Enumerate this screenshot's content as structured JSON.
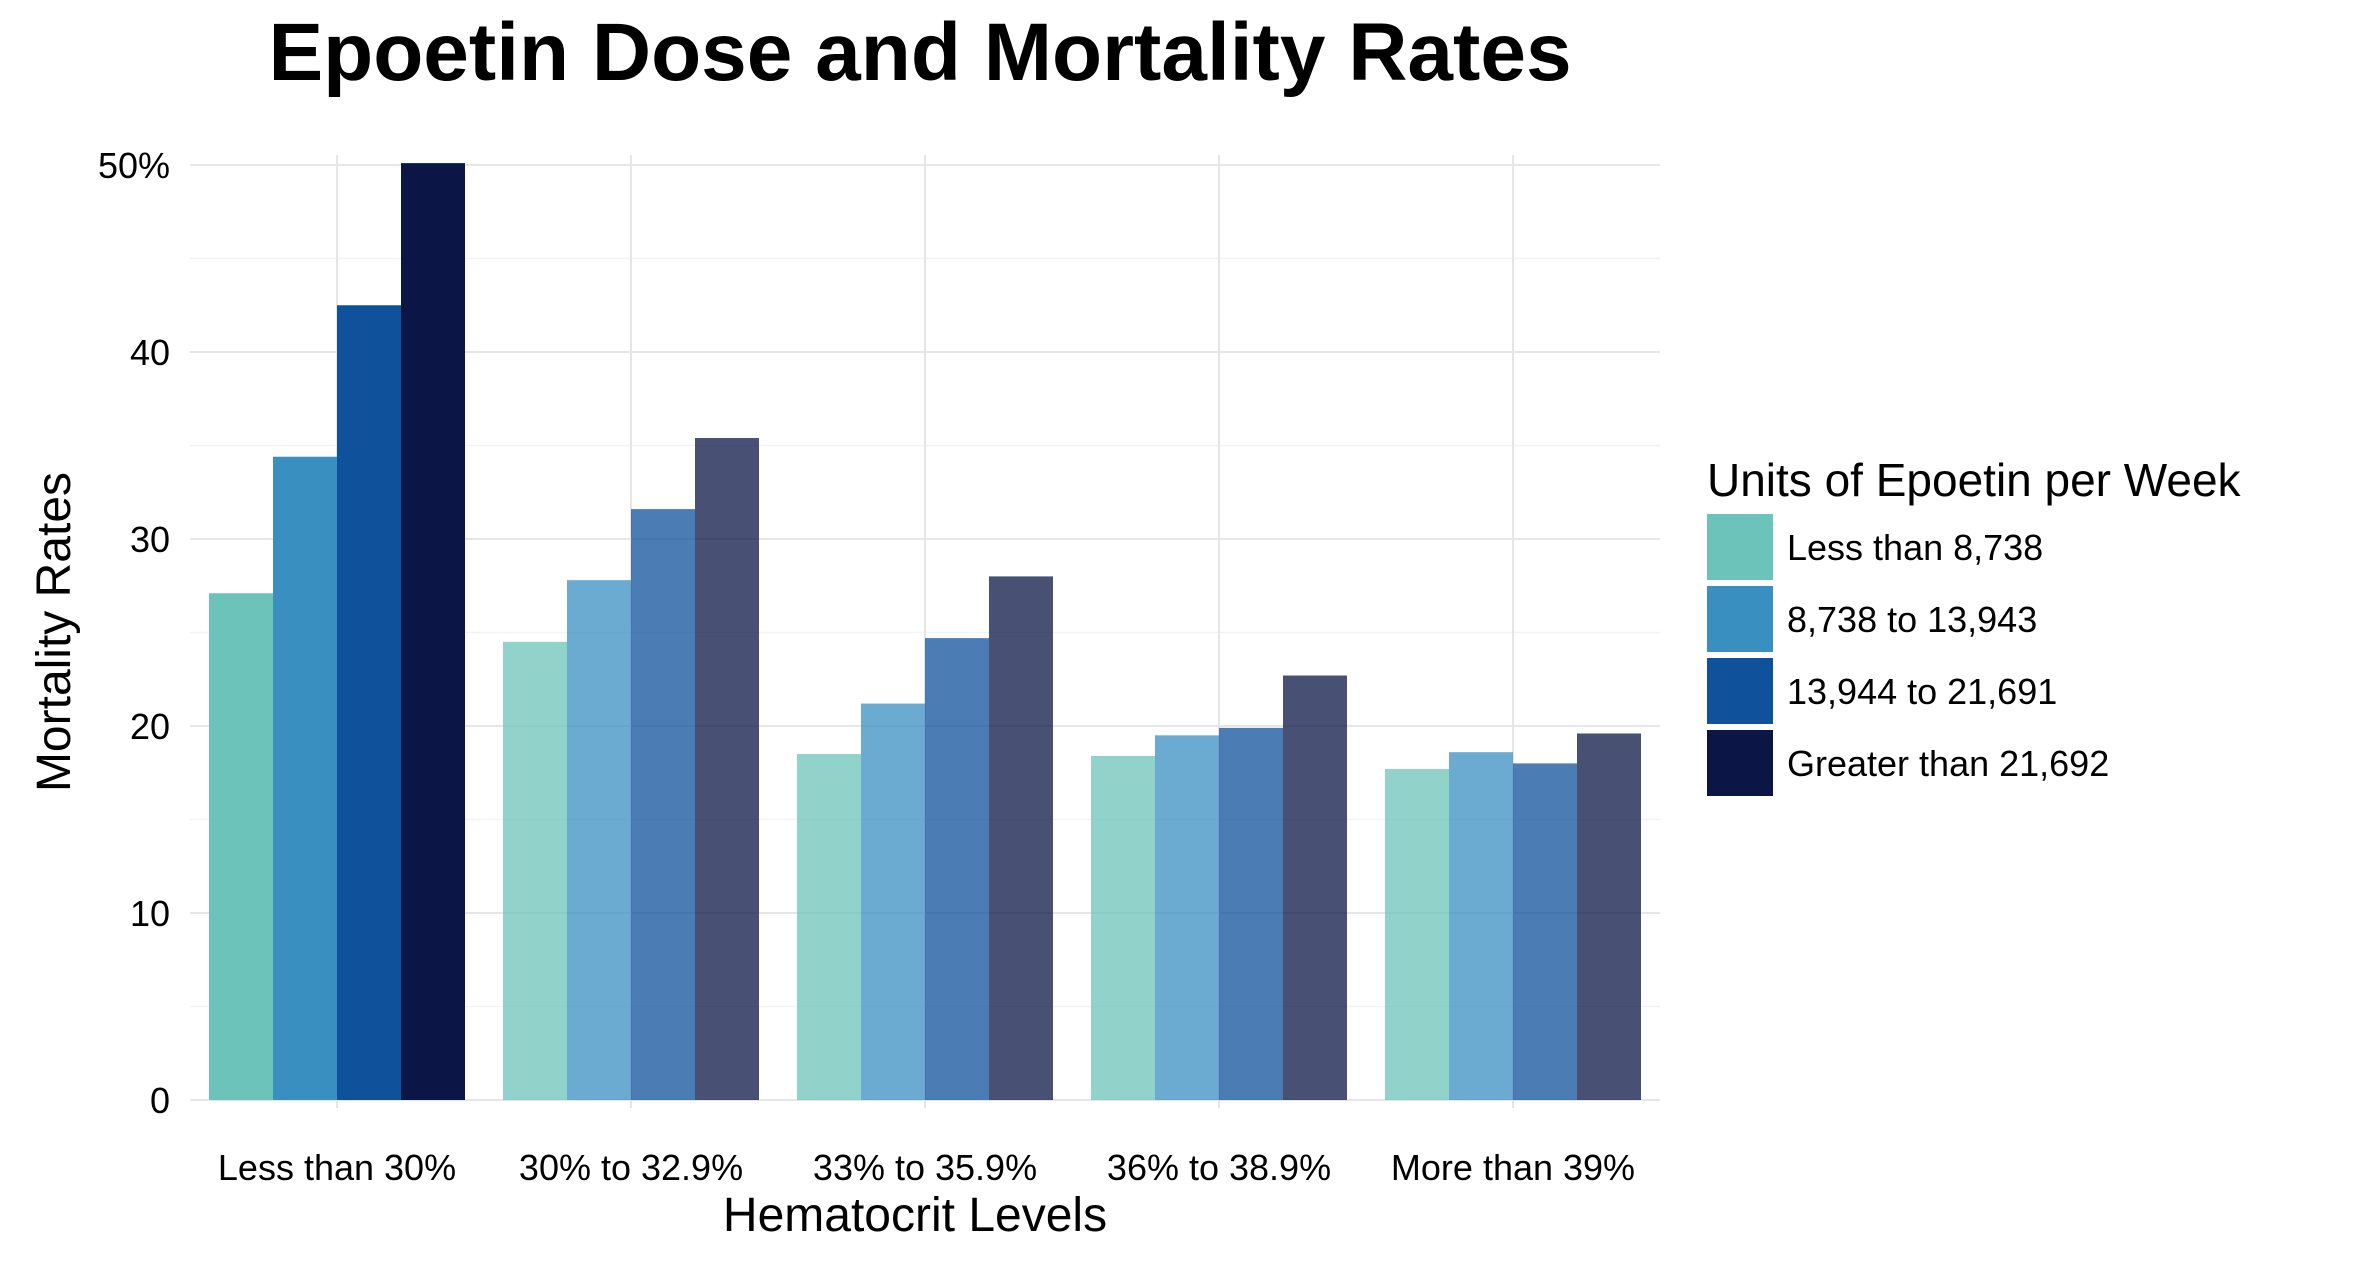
{
  "chart_data": {
    "type": "bar",
    "title": "Epoetin Dose and Mortality Rates",
    "xlabel": "Hematocrit Levels",
    "ylabel": "Mortality Rates",
    "ylim": [
      0,
      50
    ],
    "yticks": [
      0,
      10,
      20,
      30,
      40,
      50
    ],
    "ytick_labels": [
      "0",
      "10",
      "20",
      "30",
      "40",
      "50%"
    ],
    "grid": true,
    "legend_position": "right",
    "legend_title": "Units of Epoetin per Week",
    "categories": [
      "Less than 30%",
      "30% to 32.9%",
      "33% to 35.9%",
      "36% to 38.9%",
      "More than 39%"
    ],
    "series": [
      {
        "name": "Less than 8,738",
        "color": "#6cc3b9",
        "values": [
          27.1,
          24.5,
          18.5,
          18.4,
          17.7
        ]
      },
      {
        "name": "8,738 to 13,943",
        "color": "#3a8fc1",
        "values": [
          34.4,
          27.8,
          21.2,
          19.5,
          18.6
        ]
      },
      {
        "name": "13,944 to 21,691",
        "color": "#0f519b",
        "values": [
          42.5,
          31.6,
          24.7,
          19.9,
          18.0
        ]
      },
      {
        "name": "Greater than 21,692",
        "color": "#0b1546",
        "values": [
          50.1,
          35.4,
          28.0,
          22.7,
          19.6
        ]
      }
    ],
    "highlight_category_index": 0,
    "dimmed_opacity": 0.75
  }
}
